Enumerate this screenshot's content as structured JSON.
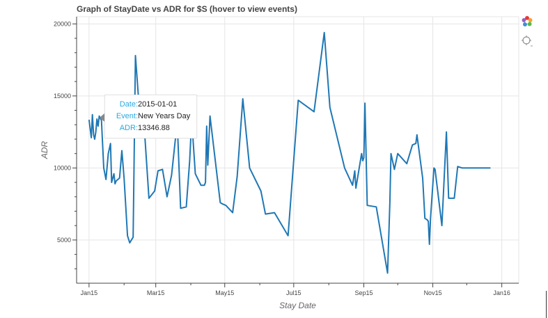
{
  "chart_data": {
    "type": "line",
    "title": "Graph of StayDate vs ADR for $S (hover to view events)",
    "xlabel": "Stay Date",
    "ylabel": "ADR",
    "xlim": [
      "2014-12-21",
      "2016-01-16"
    ],
    "ylim": [
      2000,
      20500
    ],
    "yticks": [
      5000,
      10000,
      15000,
      20000
    ],
    "xticks": [
      {
        "date": "2015-01-01",
        "label": "Jan15"
      },
      {
        "date": "2015-03-01",
        "label": "Mar15"
      },
      {
        "date": "2015-05-01",
        "label": "May15"
      },
      {
        "date": "2015-07-01",
        "label": "Jul15"
      },
      {
        "date": "2015-09-01",
        "label": "Sep15"
      },
      {
        "date": "2015-11-01",
        "label": "Nov15"
      },
      {
        "date": "2016-01-01",
        "label": "Jan16"
      }
    ],
    "grid": true,
    "line_color": "#1f77b4",
    "series": [
      {
        "x": [
          "2015-01-01",
          "2015-01-03",
          "2015-01-04",
          "2015-01-05",
          "2015-01-06",
          "2015-01-07",
          "2015-01-08",
          "2015-01-09",
          "2015-01-10",
          "2015-01-12",
          "2015-01-14",
          "2015-01-16",
          "2015-01-18",
          "2015-01-20",
          "2015-01-21",
          "2015-01-23",
          "2015-01-24",
          "2015-01-25",
          "2015-01-28",
          "2015-01-30",
          "2015-02-01",
          "2015-02-04",
          "2015-02-06",
          "2015-02-09",
          "2015-02-11",
          "2015-02-14",
          "2015-02-17",
          "2015-02-23",
          "2015-02-28",
          "2015-03-03",
          "2015-03-07",
          "2015-03-11",
          "2015-03-15",
          "2015-03-20",
          "2015-03-23",
          "2015-03-28",
          "2015-03-31",
          "2015-04-02",
          "2015-04-03",
          "2015-04-05",
          "2015-04-10",
          "2015-04-13",
          "2015-04-14",
          "2015-04-15",
          "2015-04-16",
          "2015-04-18",
          "2015-04-27",
          "2015-04-29",
          "2015-05-02",
          "2015-05-08",
          "2015-05-12",
          "2015-05-17",
          "2015-05-23",
          "2015-06-02",
          "2015-06-06",
          "2015-06-14",
          "2015-06-26",
          "2015-07-05",
          "2015-07-19",
          "2015-07-28",
          "2015-08-02",
          "2015-08-15",
          "2015-08-22",
          "2015-08-24",
          "2015-08-25",
          "2015-08-30",
          "2015-08-31",
          "2015-09-01",
          "2015-09-02",
          "2015-09-04",
          "2015-09-12",
          "2015-09-22",
          "2015-09-24",
          "2015-09-25",
          "2015-09-28",
          "2015-10-01",
          "2015-10-09",
          "2015-10-14",
          "2015-10-17",
          "2015-10-18",
          "2015-10-23",
          "2015-10-25",
          "2015-10-27",
          "2015-10-28",
          "2015-10-29",
          "2015-10-30",
          "2015-11-02",
          "2015-11-03",
          "2015-11-09",
          "2015-11-13",
          "2015-11-15",
          "2015-11-20",
          "2015-11-23",
          "2015-11-27",
          "2015-12-06",
          "2015-12-12",
          "2015-12-15",
          "2015-12-19",
          "2015-12-20",
          "2015-12-22"
        ],
        "y": [
          13346.88,
          12100,
          13700,
          12300,
          12000,
          12500,
          13400,
          12900,
          13600,
          13300,
          10000,
          9200,
          11000,
          11700,
          9000,
          9600,
          8900,
          9100,
          9300,
          11200,
          9300,
          5300,
          4800,
          5200,
          17800,
          14600,
          15000,
          7900,
          8400,
          9800,
          9900,
          8000,
          9500,
          13200,
          7200,
          7300,
          10500,
          13800,
          11900,
          9600,
          8800,
          8800,
          9000,
          12900,
          10200,
          13600,
          7600,
          7500,
          7400,
          6900,
          9400,
          14800,
          10000,
          8400,
          6800,
          6900,
          5300,
          14700,
          13900,
          19400,
          14200,
          10000,
          8800,
          9800,
          8600,
          11000,
          10500,
          10700,
          14500,
          7400,
          7300,
          2700,
          7600,
          11000,
          9900,
          11000,
          10300,
          11600,
          11700,
          12300,
          9300,
          6500,
          6400,
          6300,
          4700,
          6500,
          10000,
          9900,
          6000,
          12500,
          7900,
          7900,
          10100,
          10000,
          10000,
          10000,
          10000,
          10000,
          10000,
          10000
        ]
      }
    ]
  },
  "tooltip": {
    "date_label": "Date:",
    "date_value": "2015-01-01",
    "event_label": "Event:",
    "event_value": "New Years Day",
    "adr_label": "ADR:",
    "adr_value": "13346.88"
  },
  "toolbar": {
    "tools": [
      "bokeh-logo-icon",
      "hover-tool-icon"
    ]
  }
}
